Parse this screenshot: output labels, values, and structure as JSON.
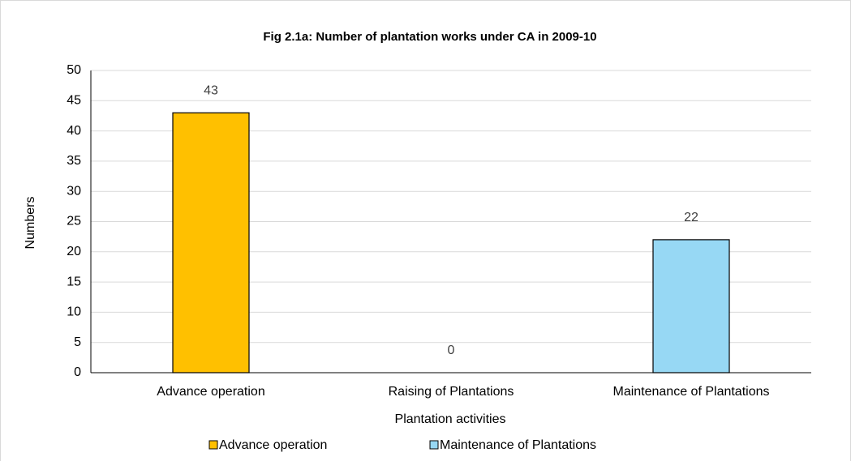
{
  "chart_data": {
    "type": "bar",
    "title": "Fig 2.1a: Number of plantation works under CA in 2009-10",
    "x_label": "Plantation activities",
    "y_label": "Numbers",
    "categories": [
      "Advance operation",
      "Raising of Plantations",
      "Maintenance of Plantations"
    ],
    "values": [
      43,
      0,
      22
    ],
    "colors": [
      "#FFC000",
      "#FFC000",
      "#97D8F4"
    ],
    "ylim": [
      0,
      50
    ],
    "yticks": [
      0,
      5,
      10,
      15,
      20,
      25,
      30,
      35,
      40,
      45,
      50
    ],
    "grid": true,
    "legend": [
      {
        "label": "Advance operation",
        "color": "#FFC000"
      },
      {
        "label": "Maintenance of Plantations",
        "color": "#97D8F4"
      }
    ]
  }
}
